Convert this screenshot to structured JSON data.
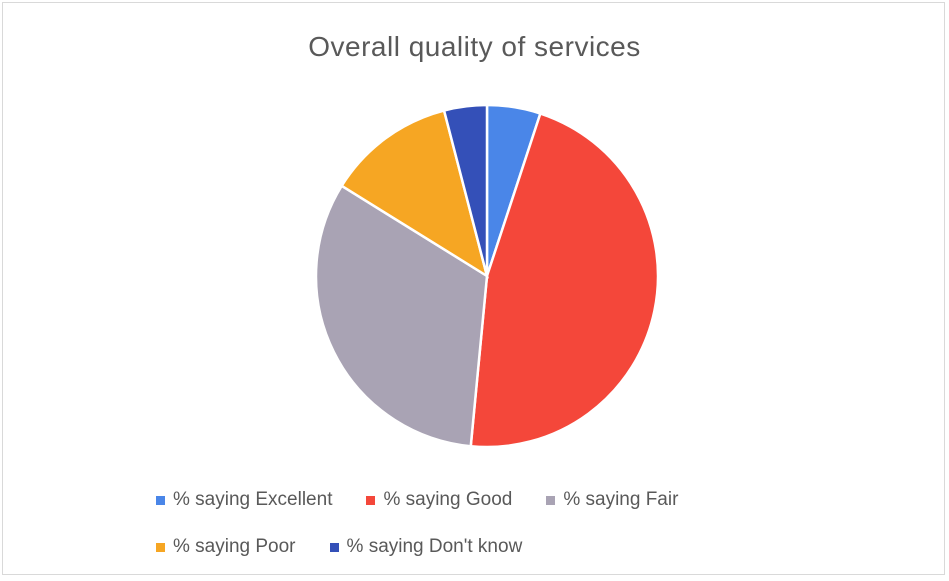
{
  "chart_data": {
    "type": "pie",
    "title": "Overall quality of services",
    "categories": [
      "% saying Excellent",
      "% saying Good",
      "% saying Fair",
      "% saying Poor",
      "% saying Don't know"
    ],
    "values": [
      5,
      46,
      32,
      12,
      4
    ],
    "colors": [
      "#4a86e8",
      "#f4473a",
      "#a9a3b4",
      "#f6a623",
      "#3450b8"
    ],
    "start_angle_deg": 0,
    "direction": "clockwise",
    "legend_position": "bottom"
  }
}
